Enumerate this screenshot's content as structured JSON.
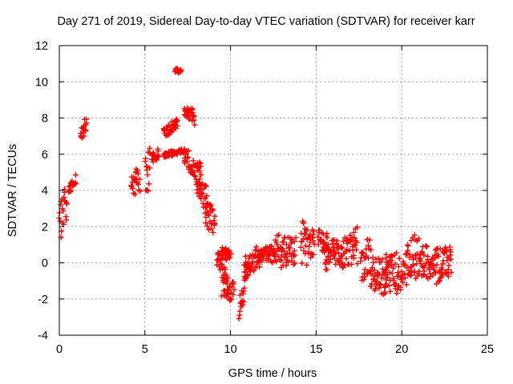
{
  "chart_data": {
    "type": "scatter",
    "title": "Day 271 of 2019, Sidereal Day-to-day VTEC variation (SDTVAR) for receiver karr",
    "xlabel": "GPS time / hours",
    "ylabel": "SDTVAR / TECUs",
    "xlim": [
      0,
      25
    ],
    "ylim": [
      -4,
      12
    ],
    "xticks": [
      "0",
      "5",
      "10",
      "15",
      "20",
      "25"
    ],
    "yticks": [
      "-4",
      "-2",
      "0",
      "2",
      "4",
      "6",
      "8",
      "10",
      "12"
    ],
    "grid": true,
    "marker": "+",
    "series_color": "#ff0000",
    "clusters": [
      {
        "x0": 0.0,
        "x1": 0.45,
        "ylow0": 1.0,
        "yhigh0": 3.0,
        "ylow1": 2.5,
        "yhigh1": 4.7
      },
      {
        "x0": 0.55,
        "x1": 0.95,
        "ylow0": 3.6,
        "yhigh0": 4.2,
        "ylow1": 4.4,
        "yhigh1": 5.0
      },
      {
        "x0": 1.25,
        "x1": 1.6,
        "ylow0": 6.5,
        "yhigh0": 7.3,
        "ylow1": 7.2,
        "yhigh1": 8.5
      },
      {
        "x0": 4.2,
        "x1": 4.7,
        "ylow0": 3.6,
        "yhigh0": 5.3,
        "ylow1": 3.9,
        "yhigh1": 5.6
      },
      {
        "x0": 5.0,
        "x1": 5.3,
        "ylow0": 3.5,
        "yhigh0": 6.5,
        "ylow1": 4.0,
        "yhigh1": 7.0
      },
      {
        "x0": 5.4,
        "x1": 5.8,
        "ylow0": 5.4,
        "yhigh0": 6.0,
        "ylow1": 5.7,
        "yhigh1": 6.3
      },
      {
        "x0": 6.1,
        "x1": 6.9,
        "ylow0": 6.8,
        "yhigh0": 7.4,
        "ylow1": 7.5,
        "yhigh1": 8.1
      },
      {
        "x0": 6.1,
        "x1": 7.3,
        "ylow0": 5.8,
        "yhigh0": 6.1,
        "ylow1": 6.1,
        "yhigh1": 6.3
      },
      {
        "x0": 6.75,
        "x1": 7.1,
        "ylow0": 10.5,
        "yhigh0": 10.8,
        "ylow1": 10.5,
        "yhigh1": 10.7
      },
      {
        "x0": 7.3,
        "x1": 7.9,
        "ylow0": 8.2,
        "yhigh0": 8.6,
        "ylow1": 7.5,
        "yhigh1": 8.5
      },
      {
        "x0": 7.3,
        "x1": 8.3,
        "ylow0": 5.5,
        "yhigh0": 6.5,
        "ylow1": 4.0,
        "yhigh1": 5.6
      },
      {
        "x0": 8.0,
        "x1": 8.6,
        "ylow0": 3.8,
        "yhigh0": 4.6,
        "ylow1": 2.6,
        "yhigh1": 4.3
      },
      {
        "x0": 8.5,
        "x1": 9.1,
        "ylow0": 2.2,
        "yhigh0": 3.8,
        "ylow1": 1.2,
        "yhigh1": 2.8
      },
      {
        "x0": 9.2,
        "x1": 9.8,
        "ylow0": -0.2,
        "yhigh0": 0.6,
        "ylow1": -1.2,
        "yhigh1": 0.4
      },
      {
        "x0": 9.5,
        "x1": 10.2,
        "ylow0": -2.0,
        "yhigh0": -0.8,
        "ylow1": -2.2,
        "yhigh1": -1.0
      },
      {
        "x0": 9.5,
        "x1": 10.0,
        "ylow0": 0.6,
        "yhigh0": 1.0,
        "ylow1": 0.2,
        "yhigh1": 0.8
      },
      {
        "x0": 10.5,
        "x1": 11.0,
        "ylow0": -3.2,
        "yhigh0": -2.0,
        "ylow1": -1.2,
        "yhigh1": 0.2
      },
      {
        "x0": 10.8,
        "x1": 11.8,
        "ylow0": -0.8,
        "yhigh0": 0.3,
        "ylow1": -0.2,
        "yhigh1": 1.2
      },
      {
        "x0": 11.6,
        "x1": 12.6,
        "ylow0": 0.0,
        "yhigh0": 0.8,
        "ylow1": 0.0,
        "yhigh1": 1.0
      },
      {
        "x0": 12.6,
        "x1": 13.8,
        "ylow0": -0.4,
        "yhigh0": 1.6,
        "ylow1": -0.2,
        "yhigh1": 1.4
      },
      {
        "x0": 14.1,
        "x1": 14.9,
        "ylow0": -0.4,
        "yhigh0": 2.5,
        "ylow1": 0.0,
        "yhigh1": 1.8
      },
      {
        "x0": 15.1,
        "x1": 15.7,
        "ylow0": 1.0,
        "yhigh0": 1.9,
        "ylow1": 0.2,
        "yhigh1": 1.6
      },
      {
        "x0": 15.5,
        "x1": 16.5,
        "ylow0": -0.4,
        "yhigh0": 1.2,
        "ylow1": -0.5,
        "yhigh1": 1.4
      },
      {
        "x0": 16.5,
        "x1": 17.4,
        "ylow0": -0.4,
        "yhigh0": 1.3,
        "ylow1": -0.2,
        "yhigh1": 2.0
      },
      {
        "x0": 17.6,
        "x1": 18.2,
        "ylow0": -1.0,
        "yhigh0": 0.5,
        "ylow1": -0.8,
        "yhigh1": 1.8
      },
      {
        "x0": 18.2,
        "x1": 19.2,
        "ylow0": -1.6,
        "yhigh0": 0.4,
        "ylow1": -1.8,
        "yhigh1": 0.5
      },
      {
        "x0": 19.0,
        "x1": 20.3,
        "ylow0": -1.5,
        "yhigh0": 0.5,
        "ylow1": -2.0,
        "yhigh1": 0.6
      },
      {
        "x0": 20.3,
        "x1": 21.1,
        "ylow0": -1.4,
        "yhigh0": 1.2,
        "ylow1": -0.6,
        "yhigh1": 1.8
      },
      {
        "x0": 21.1,
        "x1": 22.0,
        "ylow0": -0.8,
        "yhigh0": 1.1,
        "ylow1": -1.0,
        "yhigh1": 0.9
      },
      {
        "x0": 22.0,
        "x1": 22.9,
        "ylow0": -1.2,
        "yhigh0": 0.8,
        "ylow1": -0.8,
        "yhigh1": 0.9
      }
    ]
  }
}
